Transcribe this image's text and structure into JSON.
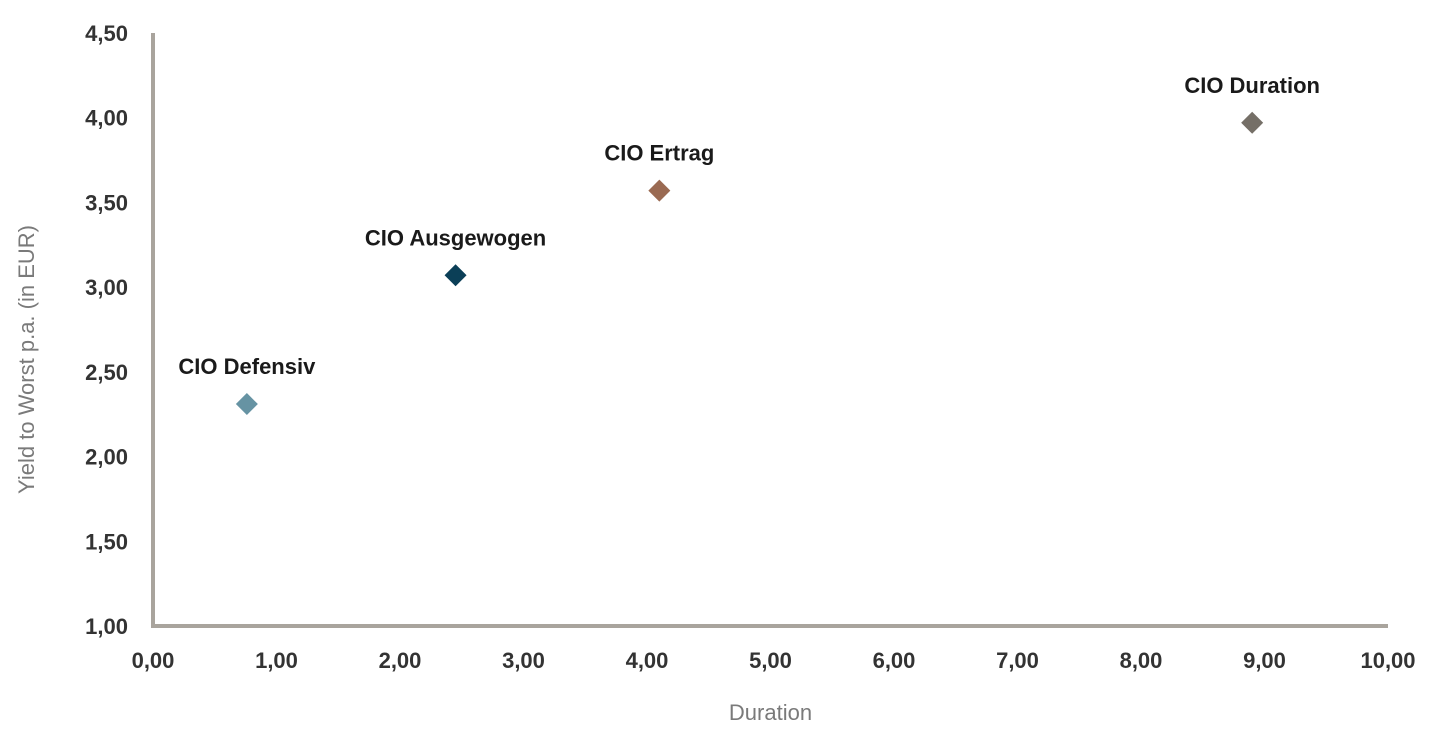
{
  "chart_data": {
    "type": "scatter",
    "title": "",
    "xlabel": "Duration",
    "ylabel": "Yield to Worst p.a. (in EUR)",
    "xlim": [
      0,
      10
    ],
    "ylim": [
      1,
      4.5
    ],
    "x_ticks": [
      "0,00",
      "1,00",
      "2,00",
      "3,00",
      "4,00",
      "5,00",
      "6,00",
      "7,00",
      "8,00",
      "9,00",
      "10,00"
    ],
    "y_ticks": [
      "1,00",
      "1,50",
      "2,00",
      "2,50",
      "3,00",
      "3,50",
      "4,00",
      "4,50"
    ],
    "grid": false,
    "marker": "diamond",
    "axis_color": "#a9a49d",
    "points": [
      {
        "label": "CIO Defensiv",
        "x": 0.76,
        "y": 2.31,
        "color": "#6693a3"
      },
      {
        "label": "CIO Ausgewogen",
        "x": 2.45,
        "y": 3.07,
        "color": "#0b3f57"
      },
      {
        "label": "CIO Ertrag",
        "x": 4.1,
        "y": 3.57,
        "color": "#9a6a52"
      },
      {
        "label": "CIO Duration",
        "x": 8.9,
        "y": 3.97,
        "color": "#756f67"
      }
    ]
  }
}
